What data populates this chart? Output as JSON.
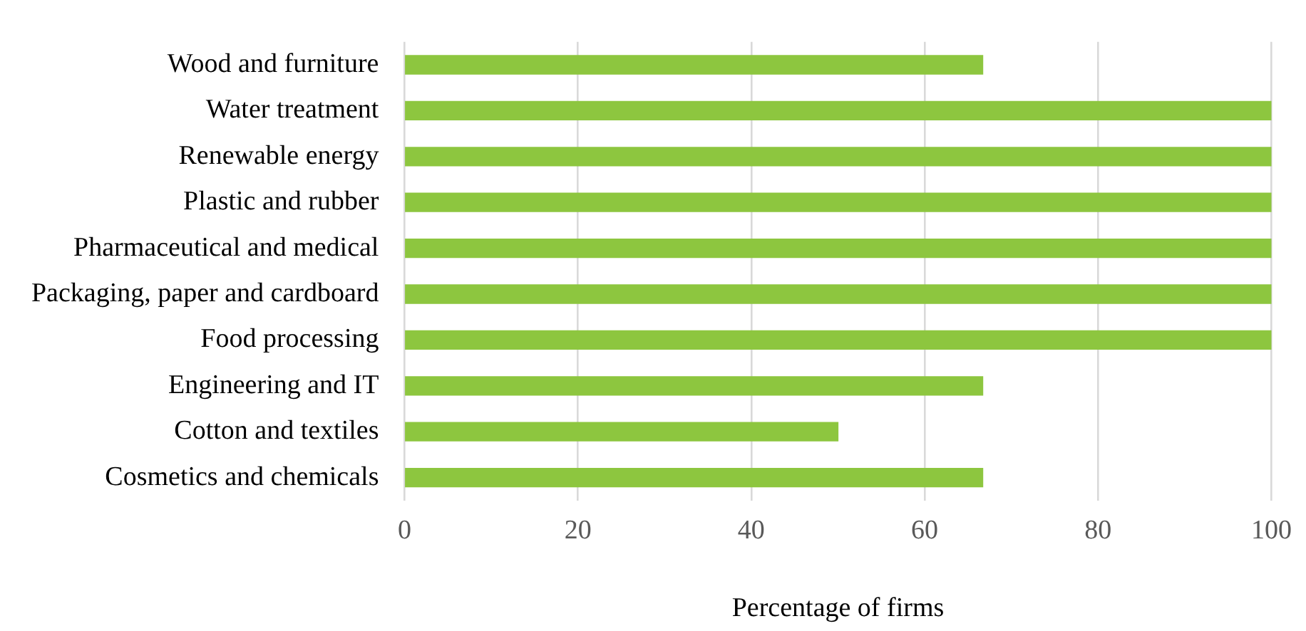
{
  "chart_data": {
    "type": "bar",
    "orientation": "horizontal",
    "xlabel": "Percentage of firms",
    "categories": [
      "Wood and furniture",
      "Water treatment",
      "Renewable energy",
      "Plastic and rubber",
      "Pharmaceutical and medical",
      "Packaging, paper and cardboard",
      "Food processing",
      "Engineering and IT",
      "Cotton and textiles",
      "Cosmetics and chemicals"
    ],
    "values": [
      66.7,
      100,
      100,
      100,
      100,
      100,
      100,
      66.7,
      50,
      66.7
    ],
    "color": "#8dc63f",
    "xlim": [
      0,
      100
    ],
    "xticks": [
      0,
      20,
      40,
      60,
      80,
      100
    ],
    "grid": "x",
    "legend": false
  }
}
